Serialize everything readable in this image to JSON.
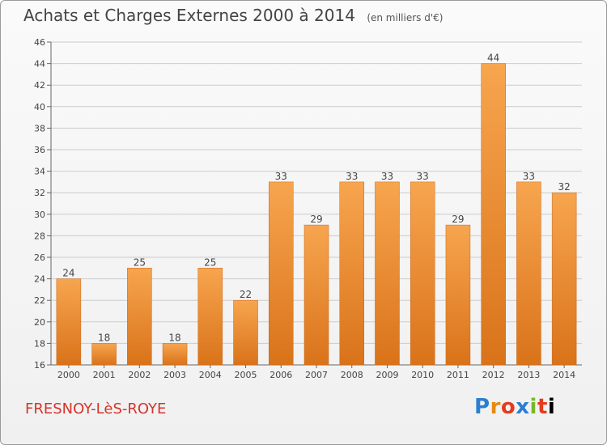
{
  "header": {
    "title": "Achats et Charges Externes 2000 à 2014",
    "subtitle": "(en milliers d'€)"
  },
  "footer": {
    "place": "FRESNOY-LèS-ROYE",
    "brand": "Proxiti",
    "brand_letters": [
      "P",
      "r",
      "o",
      "x",
      "i",
      "t",
      "i"
    ]
  },
  "colors": {
    "bar_light": "#f7a54f",
    "bar_dark": "#d9731a",
    "grid": "#cccccc",
    "text": "#444444",
    "place": "#d2352b"
  },
  "chart_data": {
    "type": "bar",
    "categories": [
      "2000",
      "2001",
      "2002",
      "2003",
      "2004",
      "2005",
      "2006",
      "2007",
      "2008",
      "2009",
      "2010",
      "2011",
      "2012",
      "2013",
      "2014"
    ],
    "values": [
      24,
      18,
      25,
      18,
      25,
      22,
      33,
      29,
      33,
      33,
      33,
      29,
      44,
      33,
      32
    ],
    "data_labels": [
      "24",
      "18",
      "25",
      "18",
      "25",
      "22",
      "33",
      "29",
      "33",
      "33",
      "33",
      "29",
      "44",
      "33",
      "32"
    ],
    "ylim": [
      16,
      46
    ],
    "yticks": [
      16,
      18,
      20,
      22,
      24,
      26,
      28,
      30,
      32,
      34,
      36,
      38,
      40,
      42,
      44,
      46
    ],
    "title": "Achats et Charges Externes 2000 à 2014",
    "subtitle": "(en milliers d'€)",
    "grid": true,
    "legend": "none"
  }
}
